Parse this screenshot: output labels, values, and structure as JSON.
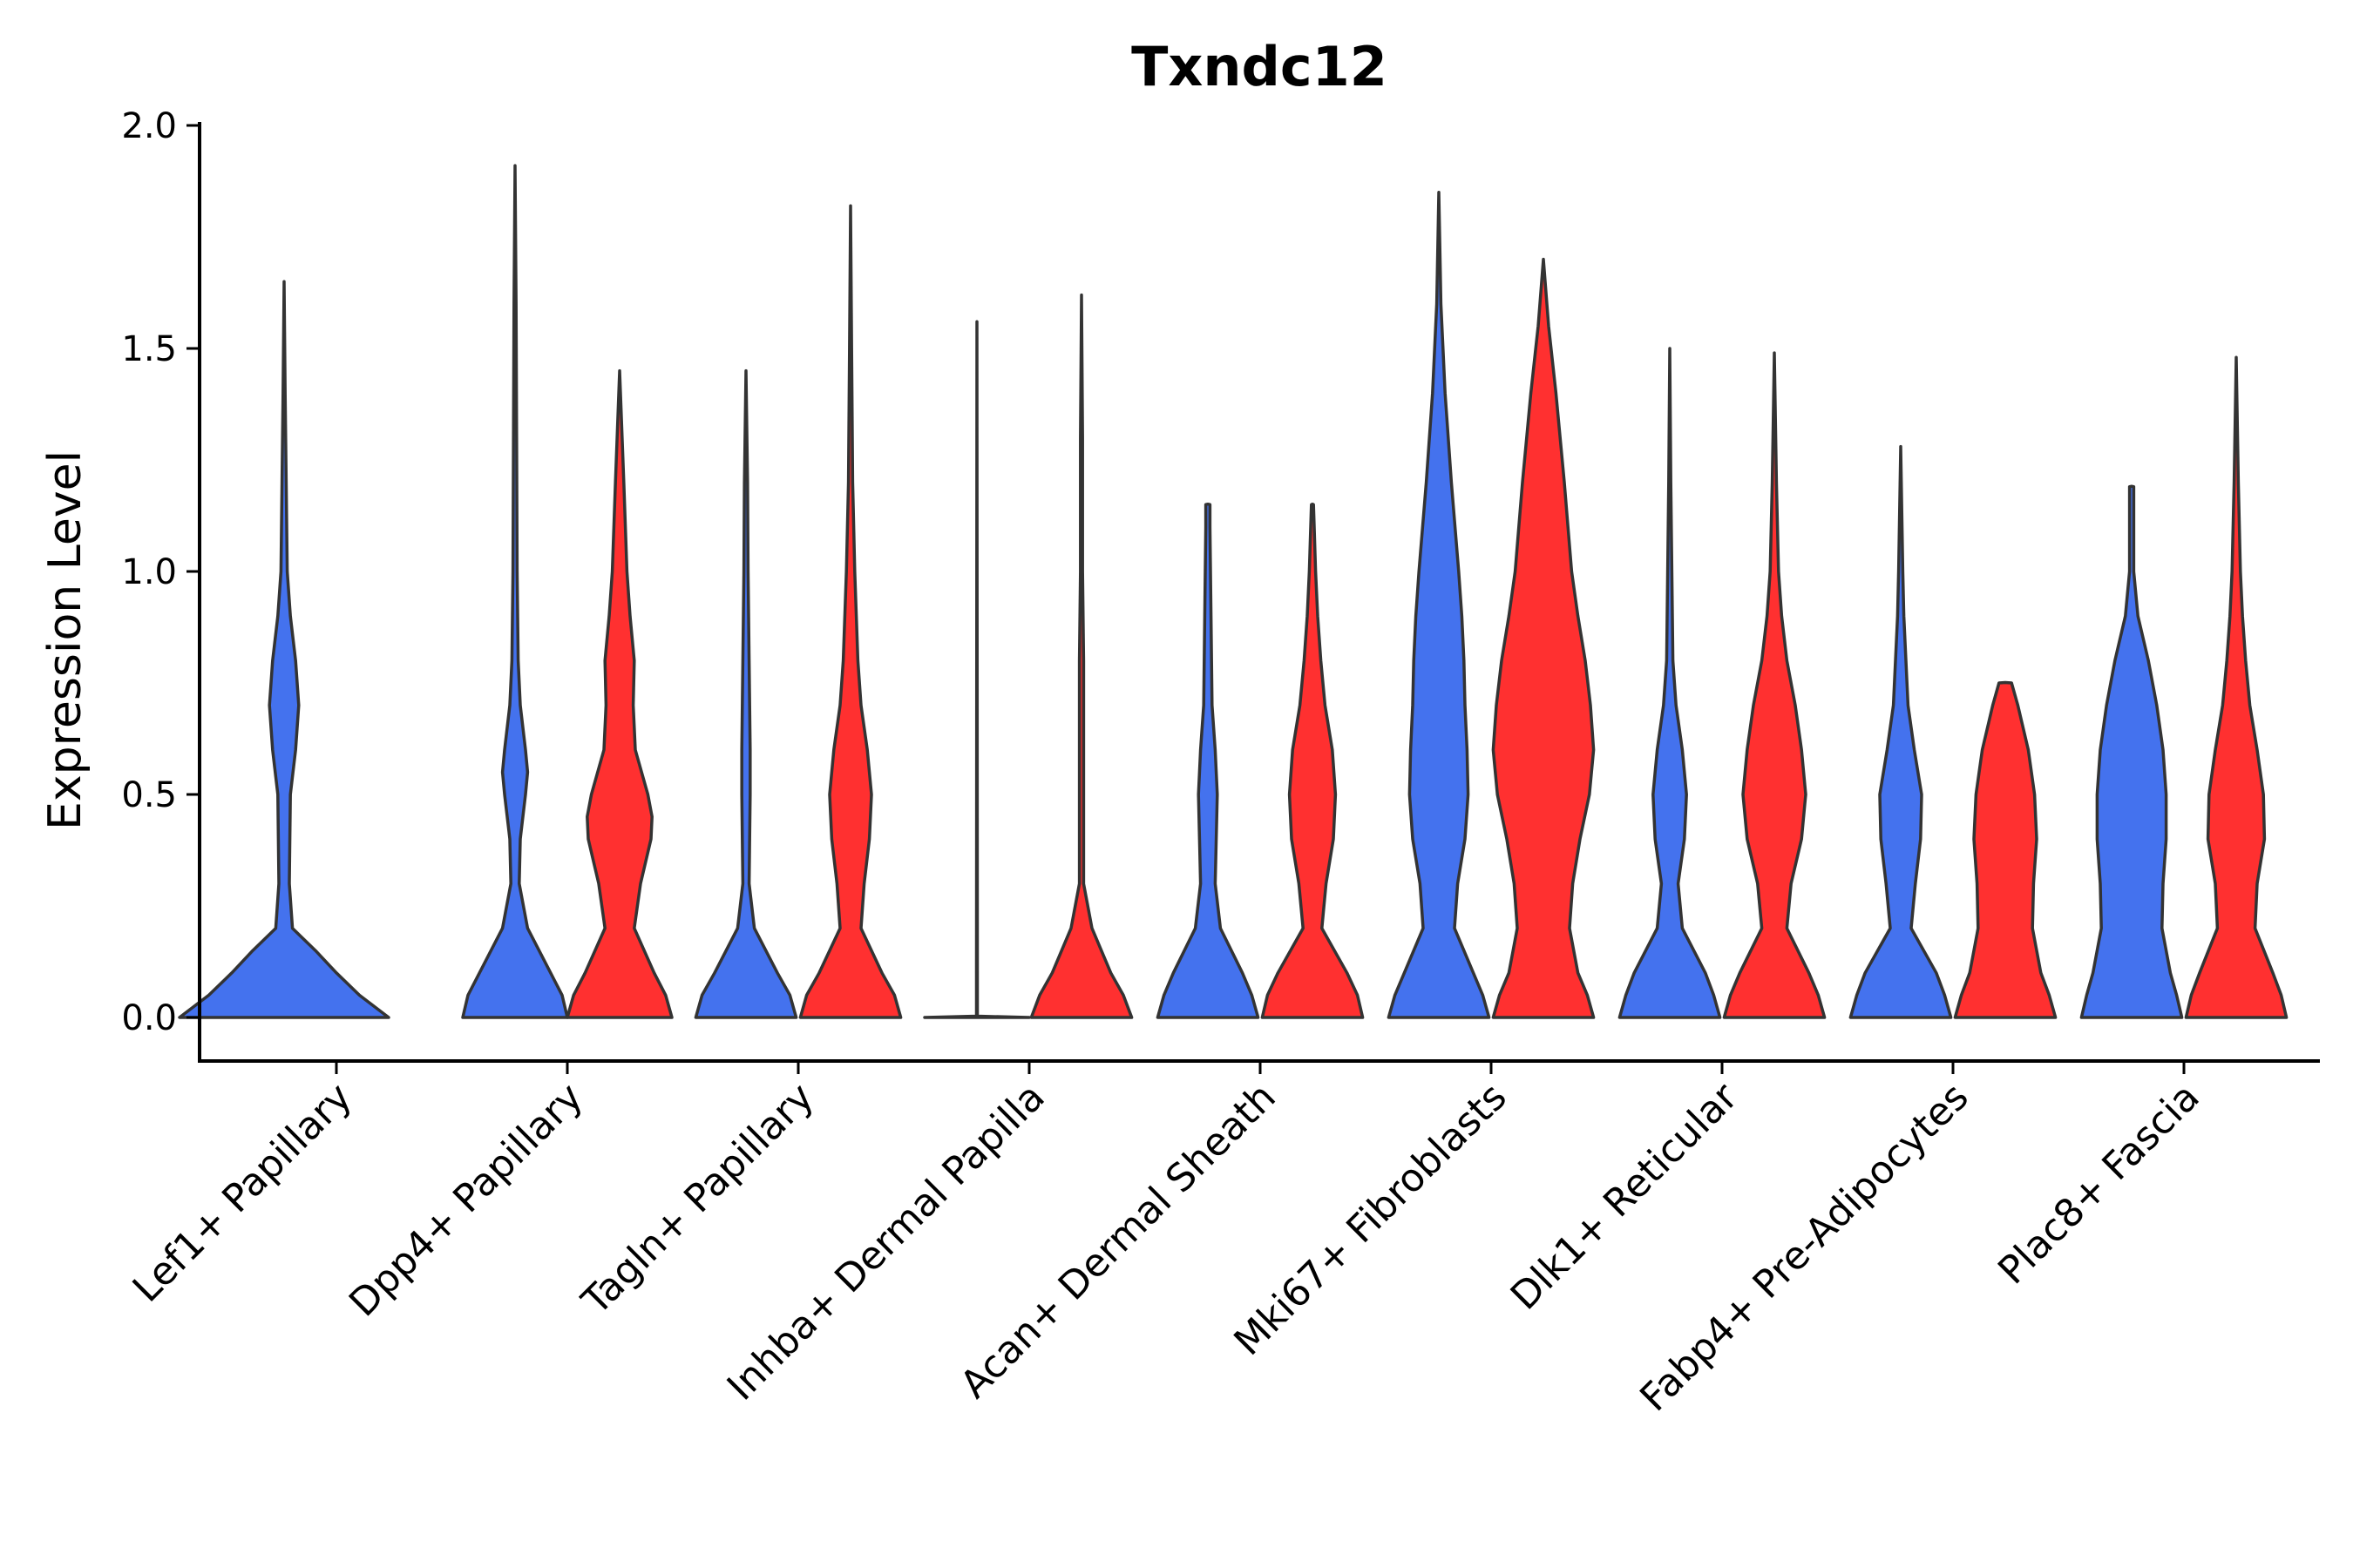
{
  "chart_data": {
    "type": "violin",
    "title": "Txndc12",
    "xlabel": "",
    "ylabel": "Expression Level",
    "ylim": [
      -0.1,
      2.0
    ],
    "yticks": [
      0.0,
      0.5,
      1.0,
      1.5,
      2.0
    ],
    "ytick_labels": [
      "0.0",
      "0.5",
      "1.0",
      "1.5",
      "2.0"
    ],
    "grid": false,
    "legend": "none",
    "colors": {
      "group1": "#4472EE",
      "group2": "#FF3030",
      "outline": "#333333"
    },
    "categories": [
      "Lef1+ Papillary",
      "Dpp4+ Papillary",
      "Tagln+ Papillary",
      "Inhba+ Dermal Papilla",
      "Acan+ Dermal Sheath",
      "Mki67+ Fibroblasts",
      "Dlk1+ Reticular",
      "Fabp4+ Pre-Adipocytes",
      "Plac8+ Fascia"
    ],
    "violins": [
      {
        "category": 0,
        "group": "group1",
        "color": "#4472EE",
        "max": 1.65,
        "profile": [
          [
            0.0,
            1.0
          ],
          [
            0.05,
            0.72
          ],
          [
            0.1,
            0.5
          ],
          [
            0.15,
            0.3
          ],
          [
            0.2,
            0.08
          ],
          [
            0.3,
            0.05
          ],
          [
            0.5,
            0.06
          ],
          [
            0.6,
            0.11
          ],
          [
            0.7,
            0.14
          ],
          [
            0.8,
            0.11
          ],
          [
            0.9,
            0.06
          ],
          [
            1.0,
            0.03
          ],
          [
            1.2,
            0.02
          ],
          [
            1.4,
            0.01
          ],
          [
            1.65,
            0.0
          ]
        ]
      },
      {
        "category": 1,
        "group": "group1",
        "color": "#4472EE",
        "max": 1.91,
        "profile": [
          [
            0.0,
            0.5
          ],
          [
            0.05,
            0.45
          ],
          [
            0.1,
            0.34
          ],
          [
            0.2,
            0.12
          ],
          [
            0.3,
            0.04
          ],
          [
            0.4,
            0.05
          ],
          [
            0.5,
            0.1
          ],
          [
            0.55,
            0.12
          ],
          [
            0.6,
            0.1
          ],
          [
            0.7,
            0.05
          ],
          [
            0.8,
            0.03
          ],
          [
            1.0,
            0.02
          ],
          [
            1.3,
            0.015
          ],
          [
            1.6,
            0.01
          ],
          [
            1.91,
            0.0
          ]
        ]
      },
      {
        "category": 1,
        "group": "group2",
        "color": "#FF3030",
        "max": 1.45,
        "profile": [
          [
            0.0,
            0.5
          ],
          [
            0.05,
            0.44
          ],
          [
            0.1,
            0.33
          ],
          [
            0.2,
            0.14
          ],
          [
            0.3,
            0.2
          ],
          [
            0.4,
            0.3
          ],
          [
            0.45,
            0.31
          ],
          [
            0.5,
            0.27
          ],
          [
            0.6,
            0.15
          ],
          [
            0.7,
            0.13
          ],
          [
            0.8,
            0.14
          ],
          [
            0.9,
            0.1
          ],
          [
            1.0,
            0.07
          ],
          [
            1.2,
            0.04
          ],
          [
            1.45,
            0.0
          ]
        ]
      },
      {
        "category": 2,
        "group": "group1",
        "color": "#4472EE",
        "max": 1.45,
        "profile": [
          [
            0.0,
            0.48
          ],
          [
            0.05,
            0.42
          ],
          [
            0.1,
            0.3
          ],
          [
            0.2,
            0.08
          ],
          [
            0.3,
            0.03
          ],
          [
            0.5,
            0.04
          ],
          [
            0.6,
            0.04
          ],
          [
            0.8,
            0.03
          ],
          [
            1.0,
            0.02
          ],
          [
            1.2,
            0.015
          ],
          [
            1.45,
            0.0
          ]
        ]
      },
      {
        "category": 2,
        "group": "group2",
        "color": "#FF3030",
        "max": 1.82,
        "profile": [
          [
            0.0,
            0.48
          ],
          [
            0.05,
            0.42
          ],
          [
            0.1,
            0.3
          ],
          [
            0.2,
            0.1
          ],
          [
            0.3,
            0.13
          ],
          [
            0.4,
            0.18
          ],
          [
            0.5,
            0.2
          ],
          [
            0.6,
            0.16
          ],
          [
            0.7,
            0.1
          ],
          [
            0.8,
            0.07
          ],
          [
            1.0,
            0.04
          ],
          [
            1.2,
            0.02
          ],
          [
            1.5,
            0.01
          ],
          [
            1.82,
            0.0
          ]
        ]
      },
      {
        "category": 3,
        "group": "group1",
        "color": "#4472EE",
        "max": 1.56,
        "profile": [
          [
            0.0,
            0.5
          ],
          [
            0.003,
            0.004
          ],
          [
            0.01,
            0.004
          ],
          [
            0.1,
            0.004
          ],
          [
            1.56,
            0.0
          ]
        ]
      },
      {
        "category": 3,
        "group": "group2",
        "color": "#FF3030",
        "max": 1.62,
        "profile": [
          [
            0.0,
            0.48
          ],
          [
            0.05,
            0.4
          ],
          [
            0.1,
            0.28
          ],
          [
            0.2,
            0.1
          ],
          [
            0.3,
            0.02
          ],
          [
            0.5,
            0.02
          ],
          [
            0.7,
            0.02
          ],
          [
            0.8,
            0.02
          ],
          [
            1.0,
            0.01
          ],
          [
            1.3,
            0.01
          ],
          [
            1.62,
            0.0
          ]
        ]
      },
      {
        "category": 4,
        "group": "group1",
        "color": "#4472EE",
        "max": 1.15,
        "profile": [
          [
            0.0,
            0.48
          ],
          [
            0.05,
            0.42
          ],
          [
            0.1,
            0.33
          ],
          [
            0.2,
            0.12
          ],
          [
            0.3,
            0.07
          ],
          [
            0.4,
            0.08
          ],
          [
            0.5,
            0.09
          ],
          [
            0.6,
            0.07
          ],
          [
            0.7,
            0.04
          ],
          [
            0.9,
            0.03
          ],
          [
            1.1,
            0.02
          ],
          [
            1.15,
            0.02
          ],
          [
            1.151,
            0.0
          ]
        ]
      },
      {
        "category": 4,
        "group": "group2",
        "color": "#FF3030",
        "max": 1.15,
        "profile": [
          [
            0.0,
            0.48
          ],
          [
            0.05,
            0.43
          ],
          [
            0.1,
            0.33
          ],
          [
            0.2,
            0.09
          ],
          [
            0.3,
            0.13
          ],
          [
            0.4,
            0.2
          ],
          [
            0.5,
            0.22
          ],
          [
            0.6,
            0.19
          ],
          [
            0.7,
            0.12
          ],
          [
            0.8,
            0.08
          ],
          [
            0.9,
            0.05
          ],
          [
            1.0,
            0.03
          ],
          [
            1.15,
            0.01
          ],
          [
            1.151,
            0.0
          ]
        ]
      },
      {
        "category": 5,
        "group": "group1",
        "color": "#4472EE",
        "max": 1.85,
        "profile": [
          [
            0.0,
            0.48
          ],
          [
            0.05,
            0.42
          ],
          [
            0.1,
            0.33
          ],
          [
            0.2,
            0.15
          ],
          [
            0.3,
            0.18
          ],
          [
            0.4,
            0.25
          ],
          [
            0.5,
            0.28
          ],
          [
            0.6,
            0.27
          ],
          [
            0.7,
            0.25
          ],
          [
            0.8,
            0.24
          ],
          [
            0.9,
            0.22
          ],
          [
            1.0,
            0.19
          ],
          [
            1.2,
            0.12
          ],
          [
            1.4,
            0.06
          ],
          [
            1.6,
            0.02
          ],
          [
            1.85,
            0.0
          ]
        ]
      },
      {
        "category": 5,
        "group": "group2",
        "color": "#FF3030",
        "max": 1.7,
        "profile": [
          [
            0.0,
            0.48
          ],
          [
            0.05,
            0.42
          ],
          [
            0.1,
            0.33
          ],
          [
            0.2,
            0.25
          ],
          [
            0.3,
            0.28
          ],
          [
            0.4,
            0.35
          ],
          [
            0.5,
            0.44
          ],
          [
            0.6,
            0.48
          ],
          [
            0.7,
            0.45
          ],
          [
            0.8,
            0.4
          ],
          [
            0.9,
            0.33
          ],
          [
            1.0,
            0.27
          ],
          [
            1.2,
            0.2
          ],
          [
            1.4,
            0.12
          ],
          [
            1.55,
            0.05
          ],
          [
            1.7,
            0.0
          ]
        ]
      },
      {
        "category": 6,
        "group": "group1",
        "color": "#4472EE",
        "max": 1.5,
        "profile": [
          [
            0.0,
            0.48
          ],
          [
            0.05,
            0.42
          ],
          [
            0.1,
            0.34
          ],
          [
            0.2,
            0.12
          ],
          [
            0.3,
            0.08
          ],
          [
            0.4,
            0.14
          ],
          [
            0.5,
            0.16
          ],
          [
            0.6,
            0.12
          ],
          [
            0.7,
            0.06
          ],
          [
            0.8,
            0.03
          ],
          [
            1.0,
            0.02
          ],
          [
            1.2,
            0.01
          ],
          [
            1.5,
            0.0
          ]
        ]
      },
      {
        "category": 6,
        "group": "group2",
        "color": "#FF3030",
        "max": 1.49,
        "profile": [
          [
            0.0,
            0.48
          ],
          [
            0.05,
            0.42
          ],
          [
            0.1,
            0.33
          ],
          [
            0.2,
            0.12
          ],
          [
            0.3,
            0.16
          ],
          [
            0.4,
            0.26
          ],
          [
            0.5,
            0.3
          ],
          [
            0.6,
            0.26
          ],
          [
            0.7,
            0.2
          ],
          [
            0.8,
            0.12
          ],
          [
            0.9,
            0.07
          ],
          [
            1.0,
            0.04
          ],
          [
            1.2,
            0.02
          ],
          [
            1.49,
            0.0
          ]
        ]
      },
      {
        "category": 7,
        "group": "group1",
        "color": "#4472EE",
        "max": 1.28,
        "profile": [
          [
            0.0,
            0.48
          ],
          [
            0.05,
            0.42
          ],
          [
            0.1,
            0.34
          ],
          [
            0.2,
            0.1
          ],
          [
            0.3,
            0.14
          ],
          [
            0.4,
            0.19
          ],
          [
            0.5,
            0.2
          ],
          [
            0.6,
            0.13
          ],
          [
            0.7,
            0.07
          ],
          [
            0.8,
            0.05
          ],
          [
            0.9,
            0.03
          ],
          [
            1.0,
            0.02
          ],
          [
            1.28,
            0.0
          ]
        ]
      },
      {
        "category": 7,
        "group": "group2",
        "color": "#FF3030",
        "max": 0.75,
        "profile": [
          [
            0.0,
            0.48
          ],
          [
            0.05,
            0.42
          ],
          [
            0.1,
            0.34
          ],
          [
            0.2,
            0.26
          ],
          [
            0.3,
            0.27
          ],
          [
            0.4,
            0.3
          ],
          [
            0.5,
            0.28
          ],
          [
            0.6,
            0.22
          ],
          [
            0.7,
            0.12
          ],
          [
            0.75,
            0.06
          ],
          [
            0.751,
            0.0
          ]
        ]
      },
      {
        "category": 8,
        "group": "group1",
        "color": "#4472EE",
        "max": 1.19,
        "profile": [
          [
            0.0,
            0.48
          ],
          [
            0.05,
            0.43
          ],
          [
            0.1,
            0.37
          ],
          [
            0.2,
            0.29
          ],
          [
            0.3,
            0.3
          ],
          [
            0.4,
            0.33
          ],
          [
            0.5,
            0.33
          ],
          [
            0.6,
            0.3
          ],
          [
            0.7,
            0.24
          ],
          [
            0.8,
            0.16
          ],
          [
            0.9,
            0.06
          ],
          [
            1.0,
            0.02
          ],
          [
            1.1,
            0.02
          ],
          [
            1.19,
            0.02
          ],
          [
            1.191,
            0.0
          ]
        ]
      },
      {
        "category": 8,
        "group": "group2",
        "color": "#FF3030",
        "max": 1.48,
        "profile": [
          [
            0.0,
            0.48
          ],
          [
            0.05,
            0.43
          ],
          [
            0.1,
            0.35
          ],
          [
            0.2,
            0.18
          ],
          [
            0.3,
            0.2
          ],
          [
            0.4,
            0.27
          ],
          [
            0.5,
            0.26
          ],
          [
            0.6,
            0.2
          ],
          [
            0.7,
            0.13
          ],
          [
            0.8,
            0.09
          ],
          [
            0.9,
            0.06
          ],
          [
            1.0,
            0.04
          ],
          [
            1.2,
            0.02
          ],
          [
            1.48,
            0.0
          ]
        ]
      }
    ]
  }
}
